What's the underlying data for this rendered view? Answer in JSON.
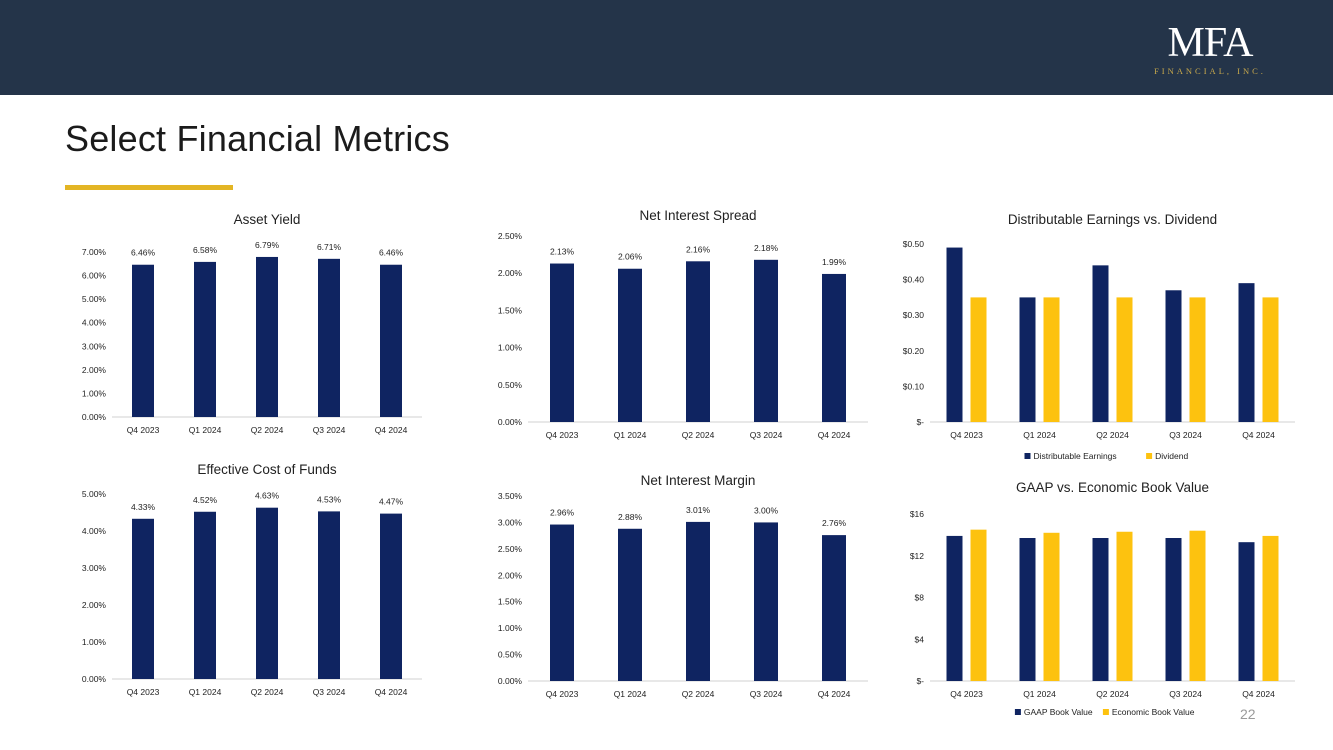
{
  "header": {
    "logo_main": "MFA",
    "logo_sub": "FINANCIAL, INC."
  },
  "page": {
    "title": "Select Financial Metrics",
    "page_number": "22"
  },
  "colors": {
    "navy": "#0f2461",
    "gold": "#fdc20f",
    "topbar": "#243449",
    "accent_rule": "#e3b524"
  },
  "chart_data": [
    {
      "id": "asset-yield",
      "type": "bar",
      "title": "Asset Yield",
      "categories": [
        "Q4 2023",
        "Q1 2024",
        "Q2 2024",
        "Q3 2024",
        "Q4 2024"
      ],
      "series": [
        {
          "name": "Asset Yield",
          "values": [
            6.46,
            6.58,
            6.79,
            6.71,
            6.46
          ]
        }
      ],
      "data_labels": [
        "6.46%",
        "6.58%",
        "6.79%",
        "6.71%",
        "6.46%"
      ],
      "ylim": [
        0,
        7
      ],
      "yticks": [
        0,
        1,
        2,
        3,
        4,
        5,
        6,
        7
      ],
      "ytick_labels": [
        "0.00%",
        "1.00%",
        "2.00%",
        "3.00%",
        "4.00%",
        "5.00%",
        "6.00%",
        "7.00%"
      ]
    },
    {
      "id": "net-interest-spread",
      "type": "bar",
      "title": "Net Interest Spread",
      "categories": [
        "Q4 2023",
        "Q1 2024",
        "Q2 2024",
        "Q3 2024",
        "Q4 2024"
      ],
      "series": [
        {
          "name": "Net Interest Spread",
          "values": [
            2.13,
            2.06,
            2.16,
            2.18,
            1.99
          ]
        }
      ],
      "data_labels": [
        "2.13%",
        "2.06%",
        "2.16%",
        "2.18%",
        "1.99%"
      ],
      "ylim": [
        0,
        2.5
      ],
      "yticks": [
        0,
        0.5,
        1,
        1.5,
        2,
        2.5
      ],
      "ytick_labels": [
        "0.00%",
        "0.50%",
        "1.00%",
        "1.50%",
        "2.00%",
        "2.50%"
      ]
    },
    {
      "id": "distributable-earnings-vs-dividend",
      "type": "bar",
      "title": "Distributable Earnings vs. Dividend",
      "categories": [
        "Q4 2023",
        "Q1 2024",
        "Q2 2024",
        "Q3 2024",
        "Q4 2024"
      ],
      "series": [
        {
          "name": "Distributable Earnings",
          "values": [
            0.49,
            0.35,
            0.44,
            0.37,
            0.39
          ]
        },
        {
          "name": "Dividend",
          "values": [
            0.35,
            0.35,
            0.35,
            0.35,
            0.35
          ]
        }
      ],
      "ylim": [
        0,
        0.5
      ],
      "yticks": [
        0,
        0.1,
        0.2,
        0.3,
        0.4,
        0.5
      ],
      "ytick_labels": [
        "$-",
        "$0.10",
        "$0.20",
        "$0.30",
        "$0.40",
        "$0.50"
      ],
      "legend": "bottom"
    },
    {
      "id": "effective-cost-of-funds",
      "type": "bar",
      "title": "Effective  Cost of Funds",
      "categories": [
        "Q4 2023",
        "Q1 2024",
        "Q2 2024",
        "Q3 2024",
        "Q4 2024"
      ],
      "series": [
        {
          "name": "Effective Cost of Funds",
          "values": [
            4.33,
            4.52,
            4.63,
            4.53,
            4.47
          ]
        }
      ],
      "data_labels": [
        "4.33%",
        "4.52%",
        "4.63%",
        "4.53%",
        "4.47%"
      ],
      "ylim": [
        0,
        5
      ],
      "yticks": [
        0,
        1,
        2,
        3,
        4,
        5
      ],
      "ytick_labels": [
        "0.00%",
        "1.00%",
        "2.00%",
        "3.00%",
        "4.00%",
        "5.00%"
      ]
    },
    {
      "id": "net-interest-margin",
      "type": "bar",
      "title": "Net Interest Margin",
      "categories": [
        "Q4 2023",
        "Q1 2024",
        "Q2 2024",
        "Q3 2024",
        "Q4 2024"
      ],
      "series": [
        {
          "name": "Net Interest Margin",
          "values": [
            2.96,
            2.88,
            3.01,
            3.0,
            2.76
          ]
        }
      ],
      "data_labels": [
        "2.96%",
        "2.88%",
        "3.01%",
        "3.00%",
        "2.76%"
      ],
      "ylim": [
        0,
        3.5
      ],
      "yticks": [
        0,
        0.5,
        1,
        1.5,
        2,
        2.5,
        3,
        3.5
      ],
      "ytick_labels": [
        "0.00%",
        "0.50%",
        "1.00%",
        "1.50%",
        "2.00%",
        "2.50%",
        "3.00%",
        "3.50%"
      ]
    },
    {
      "id": "gaap-vs-economic-book-value",
      "type": "bar",
      "title": "GAAP vs. Economic Book Value",
      "categories": [
        "Q4 2023",
        "Q1 2024",
        "Q2 2024",
        "Q3 2024",
        "Q4 2024"
      ],
      "series": [
        {
          "name": "GAAP Book Value",
          "values": [
            13.9,
            13.7,
            13.7,
            13.7,
            13.3
          ]
        },
        {
          "name": "Economic Book Value",
          "values": [
            14.5,
            14.2,
            14.3,
            14.4,
            13.9
          ]
        }
      ],
      "ylim": [
        0,
        16
      ],
      "yticks": [
        0,
        4,
        8,
        12,
        16
      ],
      "ytick_labels": [
        "$-",
        "$4",
        "$8",
        "$12",
        "$16"
      ],
      "legend": "bottom"
    }
  ]
}
